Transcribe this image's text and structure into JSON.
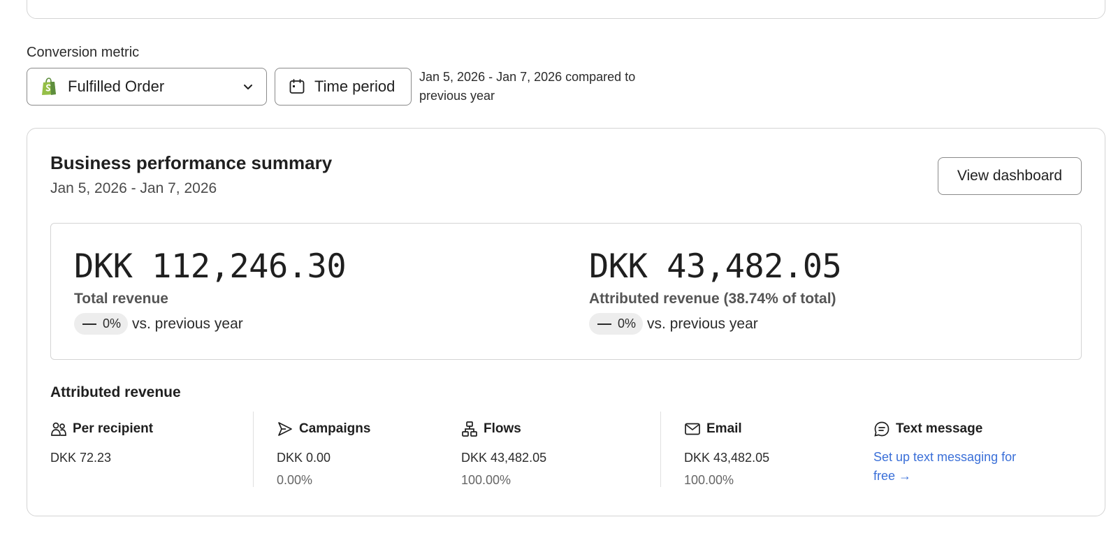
{
  "conversion_metric": {
    "label": "Conversion metric",
    "selected": "Fulfilled Order",
    "icon": "shopify-bag-icon"
  },
  "time_period": {
    "button_label": "Time period",
    "range_text": "Jan 5, 2026 - Jan 7, 2026 compared to previous year"
  },
  "summary": {
    "title": "Business performance summary",
    "date_range": "Jan 5, 2026 - Jan 7, 2026",
    "view_button": "View dashboard",
    "stats": [
      {
        "value": "DKK 112,246.30",
        "label": "Total revenue",
        "change": "0%",
        "compare": "vs. previous year"
      },
      {
        "value": "DKK 43,482.05",
        "label": "Attributed revenue (38.74% of total)",
        "change": "0%",
        "compare": "vs. previous year"
      }
    ]
  },
  "attributed": {
    "title": "Attributed revenue",
    "columns": [
      {
        "name": "Per recipient",
        "icon": "people-icon",
        "value": "DKK 72.23"
      },
      {
        "name": "Campaigns",
        "icon": "send-icon",
        "value": "DKK 0.00",
        "percent": "0.00%"
      },
      {
        "name": "Flows",
        "icon": "flow-icon",
        "value": "DKK 43,482.05",
        "percent": "100.00%"
      },
      {
        "name": "Email",
        "icon": "envelope-icon",
        "value": "DKK 43,482.05",
        "percent": "100.00%"
      },
      {
        "name": "Text message",
        "icon": "chat-icon",
        "link": "Set up text messaging for free →"
      }
    ]
  },
  "colors": {
    "link": "#3a6fd8",
    "shopify_green": "#95bf47",
    "border": "#d4d4d4"
  }
}
